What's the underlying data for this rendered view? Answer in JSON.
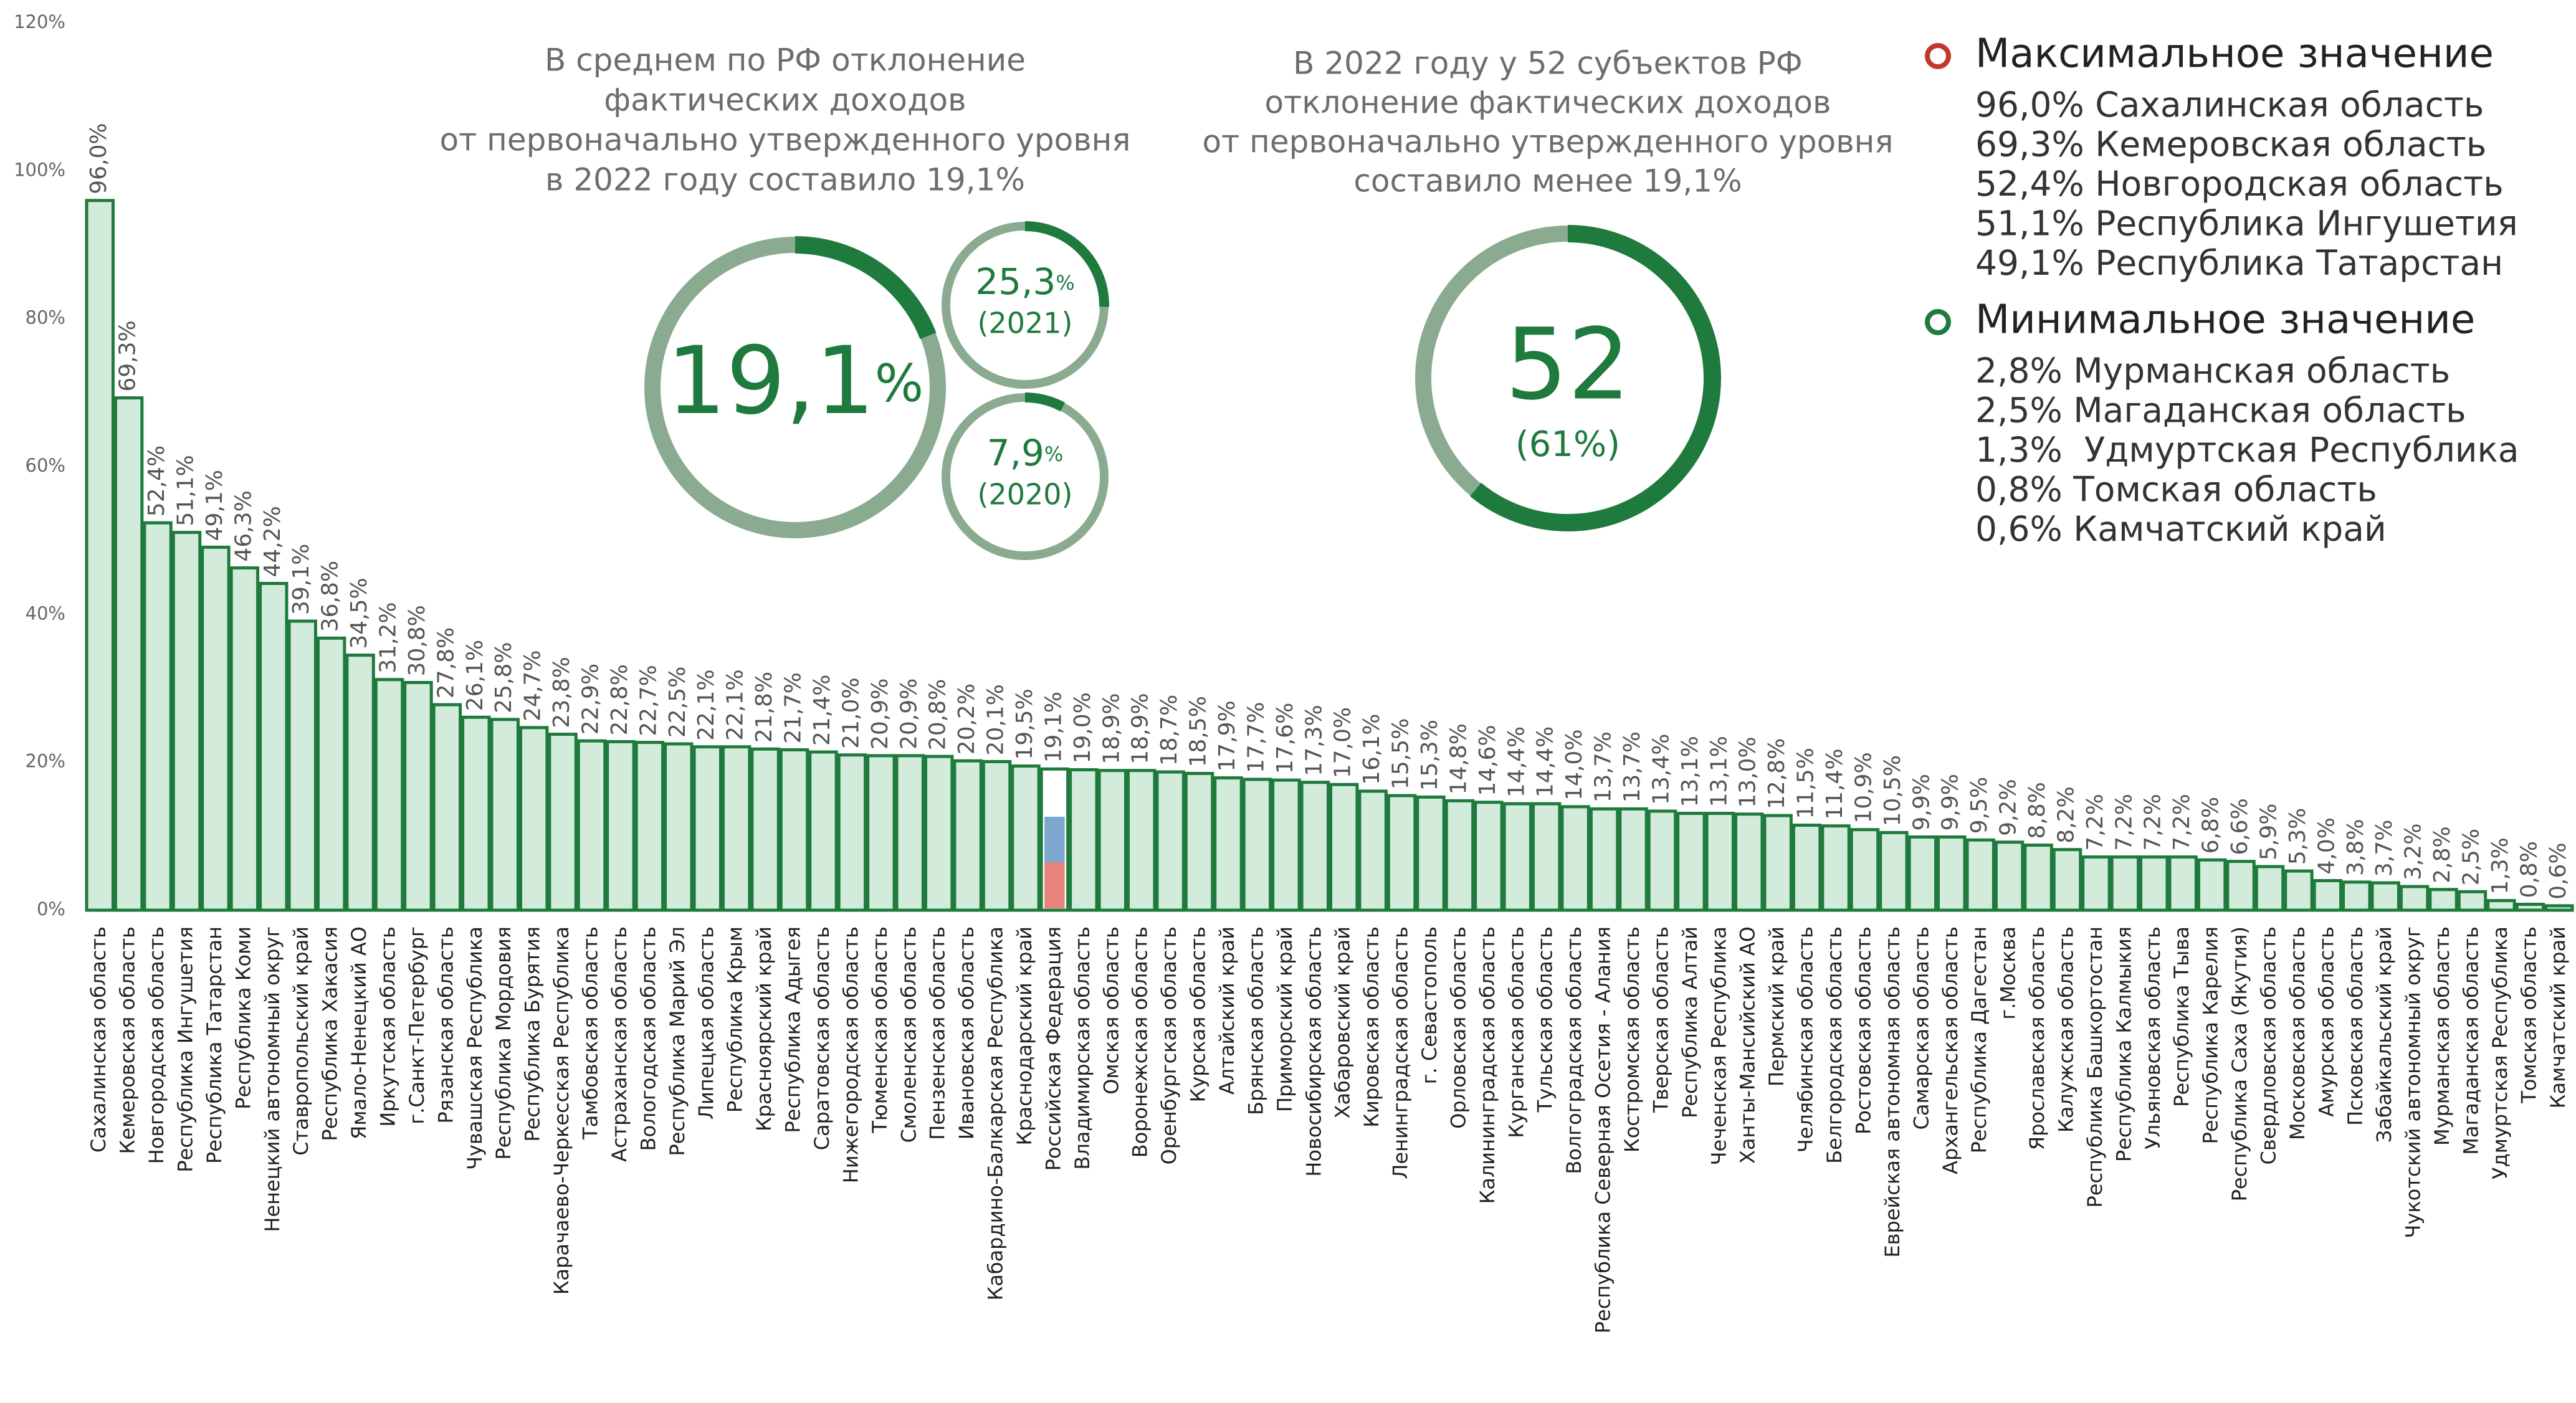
{
  "chart_data": {
    "type": "bar",
    "categories": [
      "Сахалинская область",
      "Кемеровская область",
      "Новгородская область",
      "Республика Ингушетия",
      "Республика Татарстан",
      "Республика Коми",
      "Ненецкий автономный округ",
      "Ставропольский край",
      "Республика Хакасия",
      "Ямало-Ненецкий АО",
      "Иркутская область",
      "г.Санкт-Петербург",
      "Рязанская область",
      "Чувашская Республика",
      "Республика Мордовия",
      "Республика Бурятия",
      "Карачаево-Черкесская Республика",
      "Тамбовская область",
      "Астраханская область",
      "Вологодская область",
      "Республика Марий Эл",
      "Липецкая область",
      "Республика Крым",
      "Красноярский край",
      "Республика Адыгея",
      "Саратовская область",
      "Нижегородская область",
      "Тюменская область",
      "Смоленская область",
      "Пензенская область",
      "Ивановская область",
      "Кабардино-Балкарская Республика",
      "Краснодарский край",
      "Российская Федерация",
      "Владимирская область",
      "Омская область",
      "Воронежская область",
      "Оренбургская область",
      "Курская область",
      "Алтайский край",
      "Брянская область",
      "Приморский край",
      "Новосибирская область",
      "Хабаровский край",
      "Кировская область",
      "Ленинградская область",
      "г. Севастополь",
      "Орловская область",
      "Калининградская область",
      "Курганская область",
      "Тульская область",
      "Волгоградская область",
      "Республика Северная Осетия - Алания",
      "Костромская область",
      "Тверская область",
      "Республика Алтай",
      "Чеченская Республика",
      "Ханты-Мансийский АО",
      "Пермский край",
      "Челябинская область",
      "Белгородская область",
      "Ростовская область",
      "Еврейская автономная область",
      "Самарская область",
      "Архангельская область",
      "Республика Дагестан",
      "г.Москва",
      "Ярославская область",
      "Калужская область",
      "Республика Башкортостан",
      "Республика Калмыкия",
      "Ульяновская область",
      "Республика Тыва",
      "Республика Карелия",
      "Республика Саха (Якутия)",
      "Свердловская область",
      "Московская область",
      "Амурская область",
      "Псковская область",
      "Забайкальский край",
      "Чукотский автономный округ",
      "Мурманская область",
      "Магаданская область",
      "Удмуртская Республика",
      "Томская область",
      "Камчатский край"
    ],
    "values": [
      96.0,
      69.3,
      52.4,
      51.1,
      49.1,
      46.3,
      44.2,
      39.1,
      36.8,
      34.5,
      31.2,
      30.8,
      27.8,
      26.1,
      25.8,
      24.7,
      23.8,
      22.9,
      22.8,
      22.7,
      22.5,
      22.1,
      22.1,
      21.8,
      21.7,
      21.4,
      21.0,
      20.9,
      20.9,
      20.8,
      20.2,
      20.1,
      19.5,
      19.1,
      19.0,
      18.9,
      18.9,
      18.7,
      18.5,
      17.9,
      17.7,
      17.6,
      17.3,
      17.0,
      16.1,
      15.5,
      15.3,
      14.8,
      14.6,
      14.4,
      14.4,
      14.0,
      13.7,
      13.7,
      13.4,
      13.1,
      13.1,
      13.0,
      12.8,
      11.5,
      11.4,
      10.9,
      10.5,
      9.9,
      9.9,
      9.5,
      9.2,
      8.8,
      8.2,
      7.2,
      7.2,
      7.2,
      7.2,
      6.8,
      6.6,
      5.9,
      5.3,
      4.0,
      3.8,
      3.7,
      3.2,
      2.8,
      2.5,
      1.3,
      0.8,
      0.6
    ],
    "value_labels": [
      "96,0%",
      "69,3%",
      "52,4%",
      "51,1%",
      "49,1%",
      "46,3%",
      "44,2%",
      "39,1%",
      "36,8%",
      "34,5%",
      "31,2%",
      "30,8%",
      "27,8%",
      "26,1%",
      "25,8%",
      "24,7%",
      "23,8%",
      "22,9%",
      "22,8%",
      "22,7%",
      "22,5%",
      "22,1%",
      "22,1%",
      "21,8%",
      "21,7%",
      "21,4%",
      "21,0%",
      "20,9%",
      "20,9%",
      "20,8%",
      "20,2%",
      "20,1%",
      "19,5%",
      "19,1%",
      "19,0%",
      "18,9%",
      "18,9%",
      "18,7%",
      "18,5%",
      "17,9%",
      "17,7%",
      "17,6%",
      "17,3%",
      "17,0%",
      "16,1%",
      "15,5%",
      "15,3%",
      "14,8%",
      "14,6%",
      "14,4%",
      "14,4%",
      "14,0%",
      "13,7%",
      "13,7%",
      "13,4%",
      "13,1%",
      "13,1%",
      "13,0%",
      "12,8%",
      "11,5%",
      "11,4%",
      "10,9%",
      "10,5%",
      "9,9%",
      "9,9%",
      "9,5%",
      "9,2%",
      "8,8%",
      "8,2%",
      "7,2%",
      "7,2%",
      "7,2%",
      "7,2%",
      "6,8%",
      "6,6%",
      "5,9%",
      "5,3%",
      "4,0%",
      "3,8%",
      "3,7%",
      "3,2%",
      "2,8%",
      "2,5%",
      "1,3%",
      "0,8%",
      "0,6%"
    ],
    "color": "#d3ebdb",
    "edge_color": "#1f7a3d",
    "highlight_index": 33,
    "ylim": [
      0,
      120
    ],
    "yticks": [
      {
        "value": 0,
        "label": "0%"
      },
      {
        "value": 20,
        "label": "20%"
      },
      {
        "value": 40,
        "label": "40%"
      },
      {
        "value": 60,
        "label": "60%"
      },
      {
        "value": 80,
        "label": "80%"
      },
      {
        "value": 100,
        "label": "100%"
      },
      {
        "value": 120,
        "label": "120%"
      }
    ],
    "grid": false,
    "average": {
      "text": [
        "В среднем по РФ отклонение",
        "фактических доходов",
        "от первоначально утвержденного уровня",
        "в 2022 году составило 19,1%"
      ],
      "donuts": [
        {
          "value": 19.1,
          "label": "19,1",
          "unit": "%"
        },
        {
          "value": 25.3,
          "label": "25,3",
          "unit": "%",
          "year": "(2021)"
        },
        {
          "value": 7.9,
          "label": "7,9",
          "unit": "%",
          "year": "(2020)"
        }
      ]
    },
    "below_average": {
      "text": [
        "В 2022 году у 52 субъектов РФ",
        "отклонение фактических доходов",
        "от первоначально утвержденного уровня",
        "составило менее 19,1%"
      ],
      "count": 52,
      "share": 61,
      "share_label": "(61%)"
    },
    "legend": [
      {
        "title": "Максимальное значение",
        "color": "#c0392b",
        "items": [
          "96,0% Сахалинская область",
          "69,3% Кемеровская область",
          "52,4% Новгородская область",
          "51,1% Республика Ингушетия",
          "49,1% Республика Татарстан"
        ]
      },
      {
        "title": "Минимальное значение",
        "color": "#1f7a3d",
        "items": [
          "2,8% Мурманская область",
          "2,5% Магаданская область",
          "1,3%  Удмуртская Республика",
          "0,8% Томская область",
          "0,6% Камчатский край"
        ]
      }
    ],
    "ring_color": "#8aab90"
  }
}
